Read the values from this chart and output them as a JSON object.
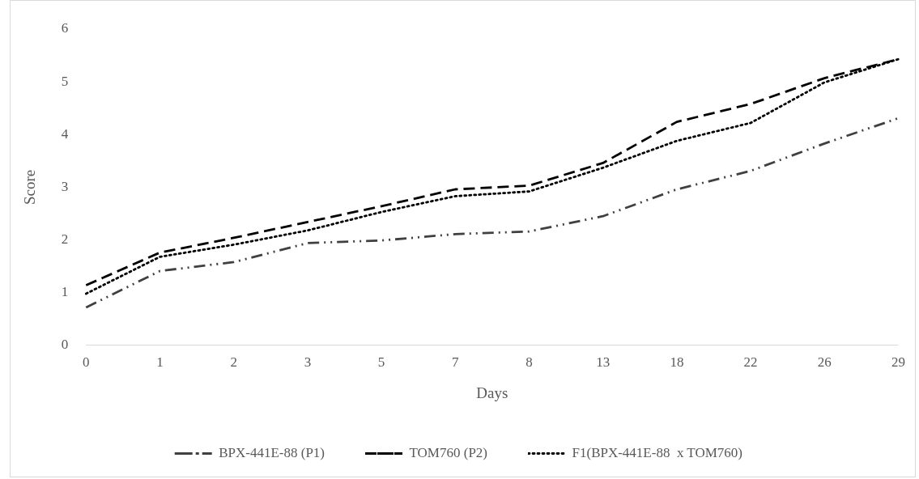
{
  "chart_data": {
    "type": "line",
    "xlabel": "Days",
    "ylabel": "Score",
    "categories": [
      "0",
      "1",
      "2",
      "3",
      "5",
      "7",
      "8",
      "13",
      "18",
      "22",
      "26",
      "29"
    ],
    "series": [
      {
        "name": "BPX-441E-88 (P1)",
        "color": "#404040",
        "line_style": "dashdot",
        "values": [
          0.72,
          1.41,
          1.58,
          1.94,
          1.99,
          2.11,
          2.16,
          2.45,
          2.96,
          3.31,
          3.83,
          4.31
        ]
      },
      {
        "name": "TOM760 (P2)",
        "color": "#000000",
        "line_style": "dashed",
        "values": [
          1.14,
          1.76,
          2.04,
          2.34,
          2.64,
          2.96,
          3.03,
          3.46,
          4.24,
          4.58,
          5.07,
          5.43
        ]
      },
      {
        "name": "F1(BPX-441E-88  x TOM760)",
        "color": "#000000",
        "line_style": "dotted",
        "values": [
          0.98,
          1.68,
          1.91,
          2.18,
          2.53,
          2.83,
          2.92,
          3.37,
          3.88,
          4.22,
          4.99,
          5.43
        ]
      }
    ],
    "ylim": [
      0,
      6
    ],
    "yticks": [
      0,
      1,
      2,
      3,
      4,
      5,
      6
    ],
    "grid": false,
    "legend": "bottom",
    "marker": "none"
  }
}
